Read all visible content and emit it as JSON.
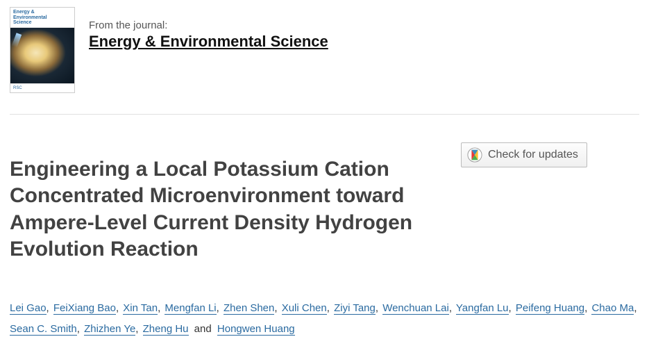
{
  "journal": {
    "from_label": "From the journal:",
    "name": "Energy & Environmental Science",
    "cover_title_line1": "Energy &",
    "cover_title_line2": "Environmental",
    "cover_title_line3": "Science",
    "cover_footer": "RSC"
  },
  "article": {
    "title": "Engineering a Local Potassium Cation Concentrated Microenvironment toward Ampere-Level Current Density Hydrogen Evolution Reaction"
  },
  "check_updates": {
    "label": "Check for updates"
  },
  "authors": [
    "Lei Gao",
    "FeiXiang Bao",
    "Xin Tan",
    "Mengfan Li",
    "Zhen Shen",
    "Xuli Chen",
    "Ziyi Tang",
    "Wenchuan Lai",
    "Yangfan Lu",
    "Peifeng Huang",
    "Chao Ma",
    "Sean C. Smith",
    "Zhizhen Ye",
    "Zheng Hu",
    "Hongwen Huang"
  ],
  "colors": {
    "author_link": "#2a6aa0",
    "title": "#424242",
    "divider": "#e0e0e0"
  }
}
